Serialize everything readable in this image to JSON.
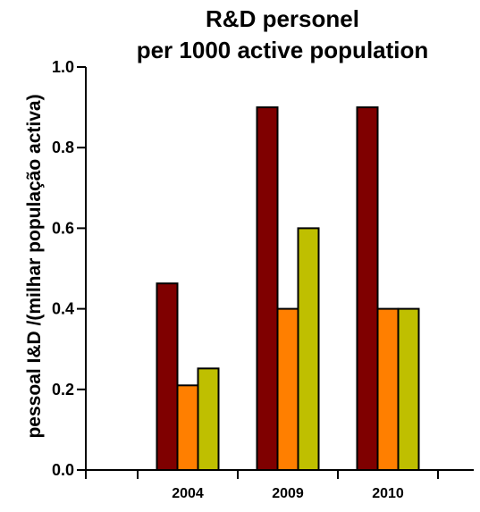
{
  "chart_data": {
    "type": "bar",
    "title_lines": [
      "R&D personel",
      "per 1000 active population"
    ],
    "xlabel": "",
    "ylabel": "pessoal  I&D /(milhar população activa)",
    "categories": [
      "2004",
      "2009",
      "2010"
    ],
    "series": [
      {
        "values": [
          0.463,
          0.9,
          0.9
        ],
        "color": "#7f0000"
      },
      {
        "values": [
          0.21,
          0.4,
          0.4
        ],
        "color": "#ff7f00"
      },
      {
        "values": [
          0.252,
          0.6,
          0.4
        ],
        "color": "#bfbf00"
      }
    ],
    "ylim": [
      0,
      1.0
    ],
    "yticks": [
      0.0,
      0.2,
      0.4,
      0.6,
      0.8,
      1.0
    ],
    "ytick_labels": [
      "0.0",
      "0.2",
      "0.4",
      "0.6",
      "0.8",
      "1.0"
    ],
    "grid": false,
    "legend": "none"
  }
}
